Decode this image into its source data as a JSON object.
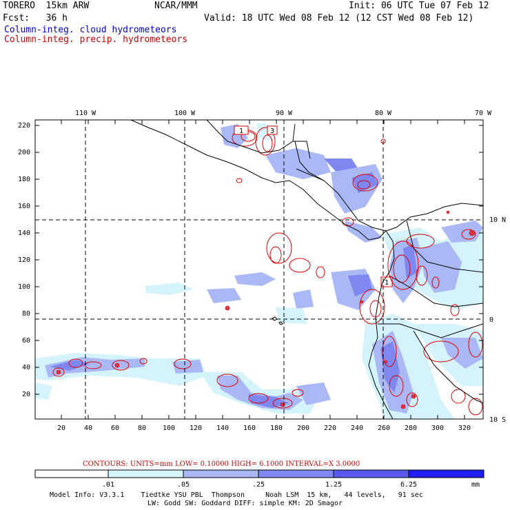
{
  "header": {
    "model": "TORERO  15km ARW",
    "org": "NCAR/MMM",
    "init": "Init: 06 UTC Tue 07 Feb 12",
    "fcst": "Fcst:   36 h",
    "valid": "Valid: 18 UTC Wed 08 Feb 12 (12 CST Wed 08 Feb 12)",
    "field_cloud": "Column-integ. cloud hydrometeors",
    "field_precip": "Column-integ. precip. hydrometeors"
  },
  "colors": {
    "cloud_label": "#0000cc",
    "precip_label": "#cc0000",
    "contour": "#dd0000",
    "coast": "#000000",
    "shade_levels": [
      "#ffffff",
      "#d4f3fb",
      "#aab8f5",
      "#7f88f0",
      "#5a5aee",
      "#1e1ef5"
    ]
  },
  "map": {
    "lon_labels": [
      "110 W",
      "100 W",
      "90 W",
      "80 W",
      "70 W"
    ],
    "lat_labels": [
      "10 N",
      "0",
      "10 S"
    ],
    "x_ticks": [
      "20",
      "40",
      "60",
      "80",
      "100",
      "120",
      "140",
      "160",
      "180",
      "200",
      "220",
      "240",
      "260",
      "280",
      "300",
      "320"
    ],
    "y_ticks": [
      "20",
      "40",
      "60",
      "80",
      "100",
      "120",
      "140",
      "160",
      "180",
      "200",
      "220"
    ],
    "high_markers": [
      "1",
      "3",
      "1"
    ]
  },
  "contours": {
    "text": "CONTOURS:  UNITS=mm  LOW= 0.10000     HIGH=  6.1000     INTERVAL=X  3.0000"
  },
  "colorbar": {
    "labels": [
      ".01",
      ".05",
      ".25",
      "1.25",
      "6.25"
    ],
    "unit": "mm"
  },
  "footer": {
    "line1": "Model Info: V3.3.1    Tiedtke YSU PBL  Thompson     Noah LSM  15 km,   44 levels,   91 sec",
    "line2": "LW: Godd SW: Goddard DIFF: simple KM: 2D Smagor"
  }
}
